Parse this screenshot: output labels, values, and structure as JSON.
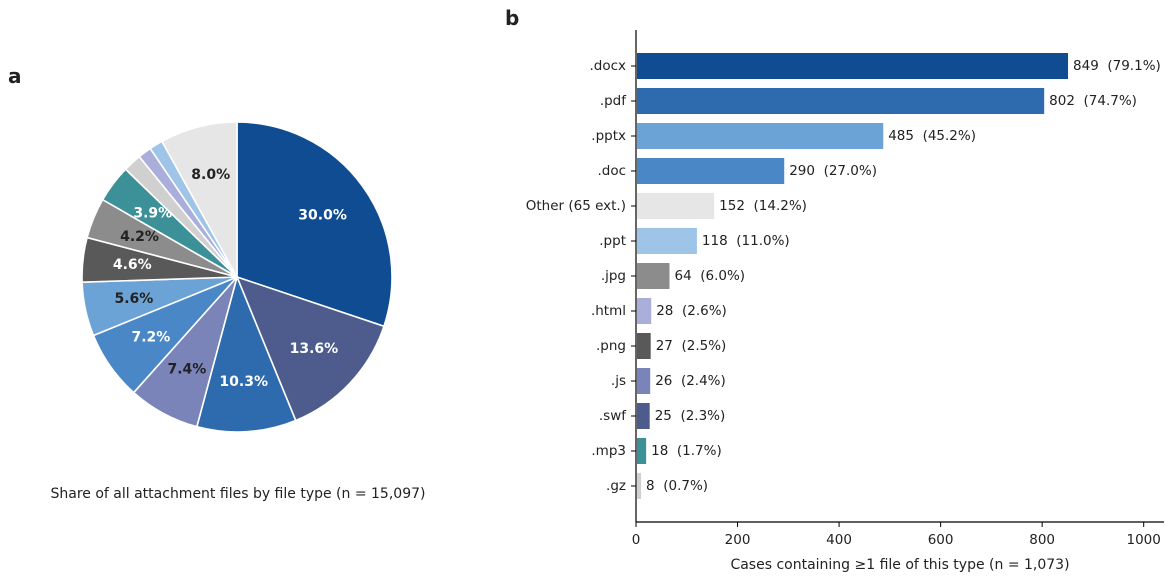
{
  "chart_data": [
    {
      "panel": "a",
      "type": "pie",
      "caption": "Share of all attachment files by file type (n = 15,097)",
      "slices": [
        {
          "label": "30.0%",
          "value": 30.0,
          "color": "#0f4c92",
          "label_color": "#ffffff"
        },
        {
          "label": "13.6%",
          "value": 13.6,
          "color": "#4d5c8c",
          "label_color": "#ffffff"
        },
        {
          "label": "10.3%",
          "value": 10.3,
          "color": "#2e6aae",
          "label_color": "#ffffff"
        },
        {
          "label": "7.4%",
          "value": 7.4,
          "color": "#7b84b9",
          "label_color": "#222222"
        },
        {
          "label": "7.2%",
          "value": 7.2,
          "color": "#4a87c6",
          "label_color": "#ffffff"
        },
        {
          "label": "5.6%",
          "value": 5.6,
          "color": "#6ba3d6",
          "label_color": "#222222"
        },
        {
          "label": "4.6%",
          "value": 4.6,
          "color": "#595959",
          "label_color": "#ffffff"
        },
        {
          "label": "4.2%",
          "value": 4.2,
          "color": "#8c8c8c",
          "label_color": "#222222"
        },
        {
          "label": "3.9%",
          "value": 3.9,
          "color": "#3c9198",
          "label_color": "#ffffff"
        },
        {
          "label": "",
          "value": 1.9,
          "color": "#d0d0d0",
          "label_color": "#222222"
        },
        {
          "label": "",
          "value": 1.4,
          "color": "#a9aedb",
          "label_color": "#222222"
        },
        {
          "label": "",
          "value": 1.4,
          "color": "#9ec4e8",
          "label_color": "#222222"
        },
        {
          "label": "8.0%",
          "value": 8.0,
          "color": "#e6e6e6",
          "label_color": "#222222"
        }
      ]
    },
    {
      "panel": "b",
      "type": "bar",
      "orientation": "horizontal",
      "xlabel": "Cases containing ≥1 file of this type (n = 1,073)",
      "xlim": [
        0,
        1040
      ],
      "xticks": [
        0,
        200,
        400,
        600,
        800,
        1000
      ],
      "bars": [
        {
          "category": ".docx",
          "value": 849,
          "label": "849  (79.1%)",
          "color": "#0f4c92"
        },
        {
          "category": ".pdf",
          "value": 802,
          "label": "802  (74.7%)",
          "color": "#2e6aae"
        },
        {
          "category": ".pptx",
          "value": 485,
          "label": "485  (45.2%)",
          "color": "#6ba3d6"
        },
        {
          "category": ".doc",
          "value": 290,
          "label": "290  (27.0%)",
          "color": "#4a87c6"
        },
        {
          "category": "Other (65 ext.)",
          "value": 152,
          "label": "152  (14.2%)",
          "color": "#e6e6e6"
        },
        {
          "category": ".ppt",
          "value": 118,
          "label": "118  (11.0%)",
          "color": "#9ec4e8"
        },
        {
          "category": ".jpg",
          "value": 64,
          "label": "64  (6.0%)",
          "color": "#8c8c8c"
        },
        {
          "category": ".html",
          "value": 28,
          "label": "28  (2.6%)",
          "color": "#a9aedb"
        },
        {
          "category": ".png",
          "value": 27,
          "label": "27  (2.5%)",
          "color": "#595959"
        },
        {
          "category": ".js",
          "value": 26,
          "label": "26  (2.4%)",
          "color": "#7b84b9"
        },
        {
          "category": ".swf",
          "value": 25,
          "label": "25  (2.3%)",
          "color": "#4d5c8c"
        },
        {
          "category": ".mp3",
          "value": 18,
          "label": "18  (1.7%)",
          "color": "#3c9198"
        },
        {
          "category": ".gz",
          "value": 8,
          "label": "8  (0.7%)",
          "color": "#d0d0d0"
        }
      ]
    }
  ],
  "panels": {
    "a": "a",
    "b": "b"
  }
}
